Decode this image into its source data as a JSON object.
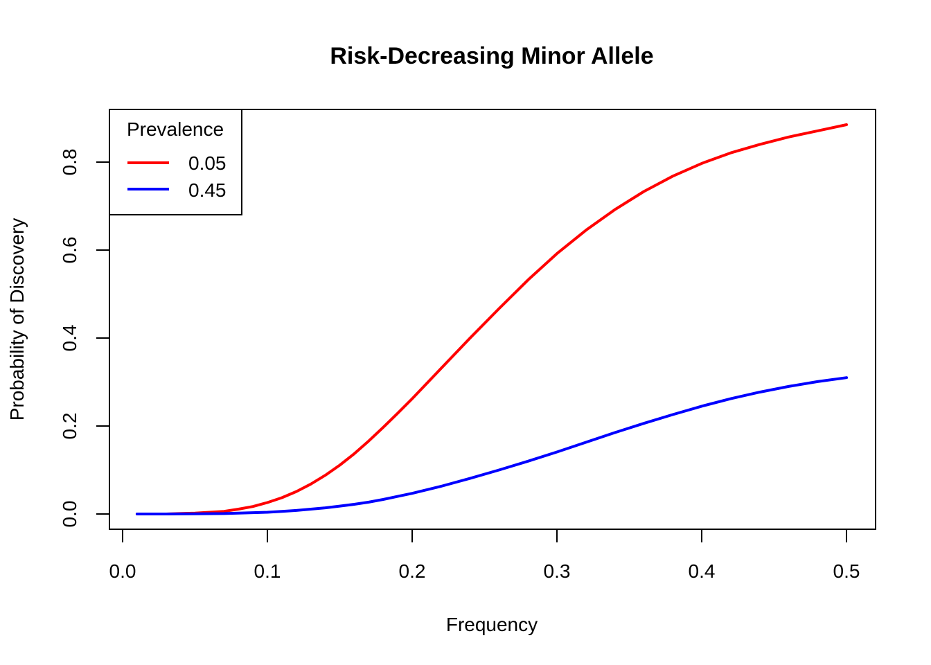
{
  "chart_data": {
    "type": "line",
    "title": "Risk-Decreasing Minor Allele",
    "xlabel": "Frequency",
    "ylabel": "Probability of Discovery",
    "xlim": [
      0.0,
      0.5
    ],
    "ylim": [
      0.0,
      0.8
    ],
    "x_ticks": [
      "0.0",
      "0.1",
      "0.2",
      "0.3",
      "0.4",
      "0.5"
    ],
    "y_ticks": [
      "0.0",
      "0.2",
      "0.4",
      "0.6",
      "0.8"
    ],
    "grid": false,
    "legend": {
      "title": "Prevalence",
      "position": "top-left"
    },
    "x": [
      0.01,
      0.03,
      0.05,
      0.07,
      0.08,
      0.09,
      0.1,
      0.11,
      0.12,
      0.13,
      0.14,
      0.15,
      0.16,
      0.17,
      0.18,
      0.19,
      0.2,
      0.22,
      0.24,
      0.26,
      0.28,
      0.3,
      0.32,
      0.34,
      0.36,
      0.38,
      0.4,
      0.42,
      0.44,
      0.46,
      0.48,
      0.5
    ],
    "series": [
      {
        "name": "0.05",
        "color": "#ff0000",
        "values": [
          0.0,
          0.0,
          0.002,
          0.006,
          0.011,
          0.017,
          0.026,
          0.037,
          0.051,
          0.068,
          0.088,
          0.111,
          0.137,
          0.166,
          0.197,
          0.229,
          0.262,
          0.331,
          0.4,
          0.467,
          0.532,
          0.592,
          0.645,
          0.692,
          0.733,
          0.768,
          0.797,
          0.821,
          0.84,
          0.857,
          0.871,
          0.885
        ]
      },
      {
        "name": "0.45",
        "color": "#0000ff",
        "values": [
          0.0,
          0.0,
          0.0005,
          0.001,
          0.002,
          0.003,
          0.004,
          0.006,
          0.008,
          0.011,
          0.014,
          0.018,
          0.022,
          0.027,
          0.033,
          0.04,
          0.047,
          0.063,
          0.081,
          0.1,
          0.12,
          0.141,
          0.163,
          0.185,
          0.206,
          0.226,
          0.245,
          0.262,
          0.277,
          0.29,
          0.301,
          0.31
        ]
      }
    ]
  }
}
